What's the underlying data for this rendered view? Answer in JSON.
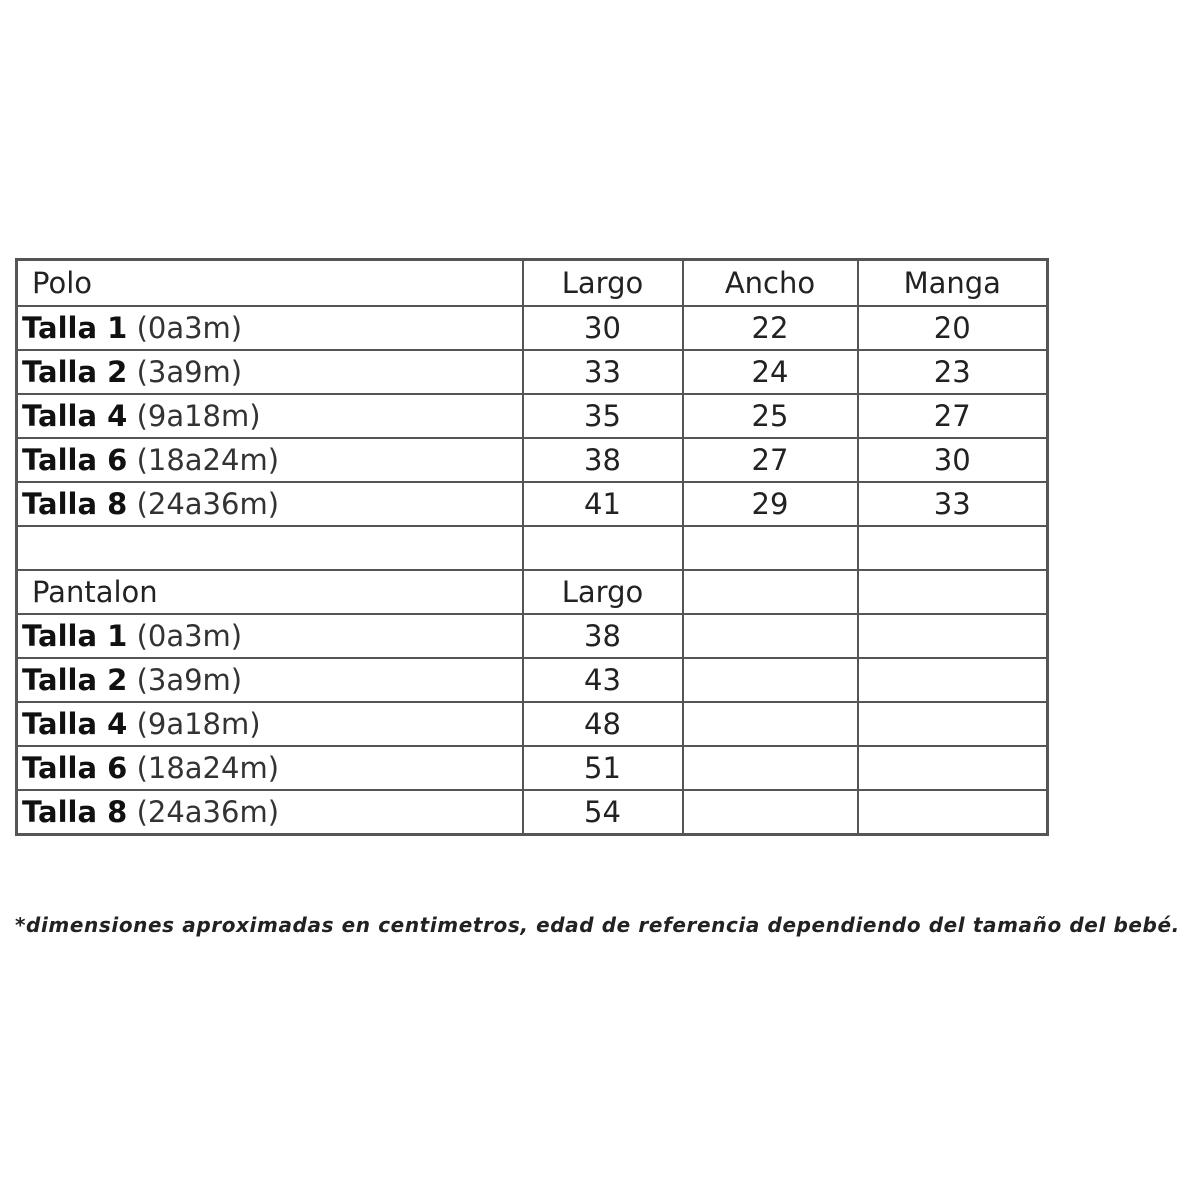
{
  "polo": {
    "title": "Polo",
    "headers": [
      "Largo",
      "Ancho",
      "Manga"
    ],
    "rows": [
      {
        "size": "Talla 1",
        "age": "(0a3m)",
        "values": [
          "30",
          "22",
          "20"
        ]
      },
      {
        "size": "Talla 2",
        "age": "(3a9m)",
        "values": [
          "33",
          "24",
          "23"
        ]
      },
      {
        "size": "Talla 4",
        "age": "(9a18m)",
        "values": [
          "35",
          "25",
          "27"
        ]
      },
      {
        "size": "Talla 6",
        "age": "(18a24m)",
        "values": [
          "38",
          "27",
          "30"
        ]
      },
      {
        "size": "Talla 8",
        "age": "(24a36m)",
        "values": [
          "41",
          "29",
          "33"
        ]
      }
    ]
  },
  "pantalon": {
    "title": "Pantalon",
    "headers": [
      "Largo"
    ],
    "rows": [
      {
        "size": "Talla 1",
        "age": "(0a3m)",
        "values": [
          "38"
        ]
      },
      {
        "size": "Talla 2",
        "age": "(3a9m)",
        "values": [
          "43"
        ]
      },
      {
        "size": "Talla 4",
        "age": "(9a18m)",
        "values": [
          "48"
        ]
      },
      {
        "size": "Talla 6",
        "age": "(18a24m)",
        "values": [
          "51"
        ]
      },
      {
        "size": "Talla 8",
        "age": "(24a36m)",
        "values": [
          "54"
        ]
      }
    ]
  },
  "note": "*dimensiones aproximadas en centimetros, edad de referencia dependiendo del tamaño del bebé."
}
